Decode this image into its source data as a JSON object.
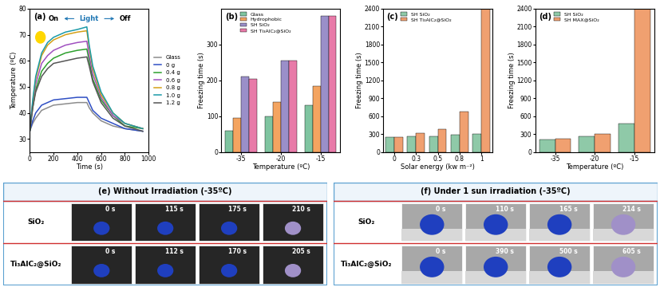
{
  "chart_data": [
    {
      "type": "line",
      "panel_label": "(a)",
      "x_label": "Time (s)",
      "y_label": "Temperature (ºC)",
      "annotations": [
        "On",
        "Light",
        "Off"
      ],
      "x": [
        0,
        25,
        50,
        100,
        150,
        200,
        300,
        400,
        480,
        500,
        530,
        600,
        700,
        800,
        950
      ],
      "xlim": [
        0,
        1000
      ],
      "xticks": [
        0,
        200,
        400,
        600,
        800,
        1000
      ],
      "ylim": [
        25,
        80
      ],
      "yticks": [
        30,
        40,
        50,
        60,
        70,
        80
      ],
      "legend": "center left",
      "series": [
        {
          "name": "Glass",
          "color": "#8c8c8c",
          "values": [
            33,
            36,
            38,
            41,
            42,
            43,
            43.5,
            44,
            44,
            42,
            40,
            37,
            35,
            34,
            33
          ]
        },
        {
          "name": "0 g",
          "color": "#2f4fc4",
          "values": [
            33,
            37,
            40,
            43,
            44,
            45,
            45.5,
            46,
            46,
            44,
            41,
            38,
            36,
            34,
            33
          ]
        },
        {
          "name": "0.4 g",
          "color": "#2ca02c",
          "values": [
            33,
            42,
            49,
            56,
            59,
            61,
            63,
            64,
            64.5,
            60,
            53,
            45,
            39,
            35,
            34
          ]
        },
        {
          "name": "0.6 g",
          "color": "#a050c0",
          "values": [
            33,
            43,
            51,
            59,
            62,
            64,
            66,
            67,
            67.5,
            62,
            55,
            46,
            39,
            36,
            34
          ]
        },
        {
          "name": "0.8 g",
          "color": "#d4a017",
          "values": [
            33,
            44,
            53,
            62,
            66,
            68,
            70,
            71,
            71.5,
            65,
            57,
            47,
            40,
            36,
            34
          ]
        },
        {
          "name": "1.0 g",
          "color": "#1a9aa8",
          "values": [
            33,
            45,
            54,
            63,
            67,
            69,
            71,
            72,
            73,
            66,
            58,
            48,
            40,
            36,
            34
          ]
        },
        {
          "name": "1.2 g",
          "color": "#555555",
          "values": [
            33,
            42,
            48,
            54,
            57,
            59,
            60,
            61,
            61.5,
            58,
            52,
            44,
            38,
            35,
            33
          ]
        }
      ]
    },
    {
      "type": "bar",
      "panel_label": "(b)",
      "x_label": "Temperature (ºC)",
      "y_label": "Freezing time (s)",
      "categories": [
        "-35",
        "-20",
        "-15"
      ],
      "ylim": [
        0,
        400
      ],
      "yticks": [
        0,
        100,
        200,
        300
      ],
      "legend": "upper left",
      "series": [
        {
          "name": "Glass",
          "color": "#7fc4a0",
          "values": [
            60,
            100,
            130
          ]
        },
        {
          "name": "Hydrophobic",
          "color": "#f4a460",
          "values": [
            95,
            140,
            185
          ]
        },
        {
          "name": "SH SiO₂",
          "color": "#9a8fc9",
          "values": [
            210,
            255,
            380
          ]
        },
        {
          "name": "SH Ti₃AlC₂@SiO₂",
          "color": "#e87aa8",
          "values": [
            205,
            255,
            380
          ]
        }
      ]
    },
    {
      "type": "bar",
      "panel_label": "(c)",
      "x_label": "Solar energy (kw m⁻²)",
      "y_label": "Freezing time (s)",
      "categories": [
        "0",
        "0.3",
        "0.5",
        "0.8",
        "1"
      ],
      "ylim": [
        0,
        2400
      ],
      "yticks": [
        0,
        300,
        600,
        900,
        1200,
        1500,
        1800,
        2100,
        2400
      ],
      "legend": "upper left",
      "series": [
        {
          "name": "SH SiO₂",
          "color": "#8fc9a8",
          "values": [
            250,
            260,
            270,
            290,
            310
          ]
        },
        {
          "name": "SH Ti₃AlC₂@SiO₂",
          "color": "#f0a070",
          "values": [
            250,
            320,
            380,
            680,
            2400
          ]
        }
      ]
    },
    {
      "type": "bar",
      "panel_label": "(d)",
      "x_label": "Temperature (ºC)",
      "y_label": "Freezing time (s)",
      "categories": [
        "-35",
        "-20",
        "-15"
      ],
      "ylim": [
        0,
        2400
      ],
      "yticks": [
        0,
        300,
        600,
        900,
        1200,
        1500,
        1800,
        2100,
        2400
      ],
      "legend": "upper left",
      "series": [
        {
          "name": "SH SiO₂",
          "color": "#8fc9a8",
          "values": [
            210,
            260,
            480
          ]
        },
        {
          "name": "SH MAX@SiO₂",
          "color": "#f0a070",
          "values": [
            230,
            310,
            2400
          ]
        }
      ]
    }
  ],
  "photo_panels": [
    {
      "label": "(e)",
      "title": "Without Irradiation (-35ºC)",
      "rows": [
        {
          "name": "SiO₂",
          "times": [
            "0 s",
            "115 s",
            "175 s",
            "210 s"
          ]
        },
        {
          "name": "Ti₃AlC₂@SiO₂",
          "times": [
            "0 s",
            "112 s",
            "170 s",
            "205 s"
          ]
        }
      ]
    },
    {
      "label": "(f)",
      "title": "Under 1 sun irradiation (-35ºC)",
      "rows": [
        {
          "name": "SiO₂",
          "times": [
            "0 s",
            "110 s",
            "165 s",
            "214 s"
          ]
        },
        {
          "name": "Ti₃AlC₂@SiO₂",
          "times": [
            "0 s",
            "390 s",
            "500 s",
            "605 s"
          ]
        }
      ]
    }
  ]
}
